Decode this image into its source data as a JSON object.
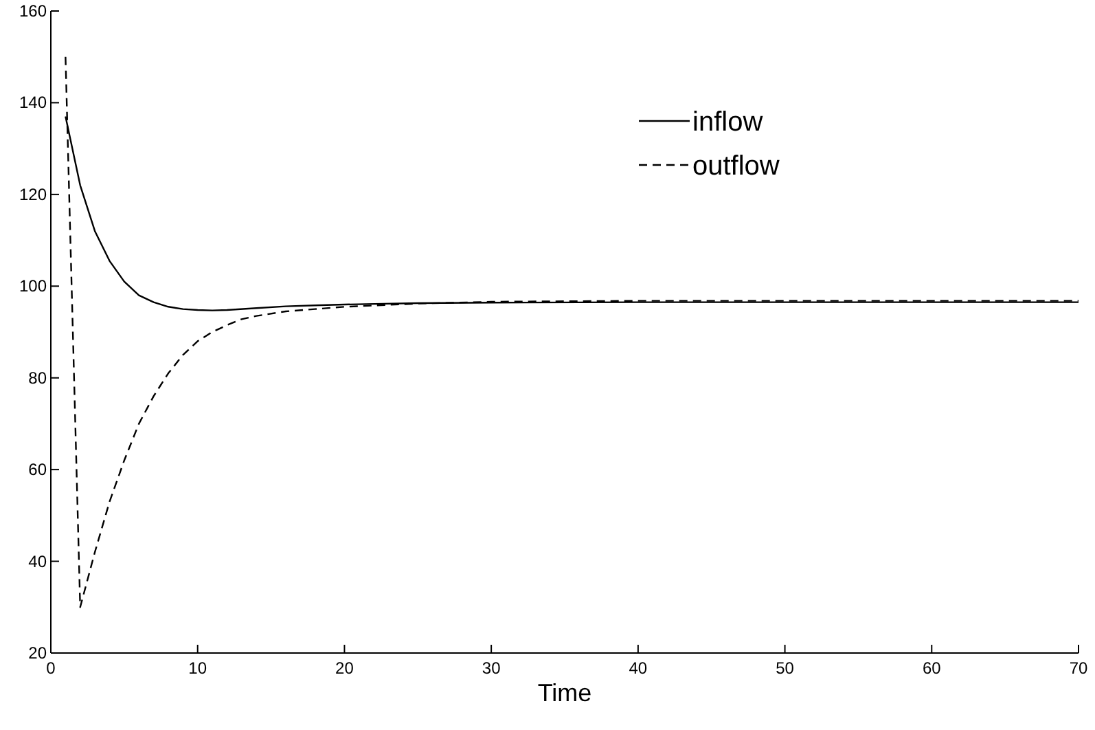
{
  "chart_data": {
    "type": "line",
    "xlabel": "Time",
    "xlim": [
      0,
      70
    ],
    "xticks": [
      0,
      10,
      20,
      30,
      40,
      50,
      60,
      70
    ],
    "ylim": [
      20,
      160
    ],
    "yticks": [
      20,
      40,
      60,
      80,
      100,
      120,
      140,
      160
    ],
    "grid": false,
    "legend": "top right",
    "series": [
      {
        "name": "inflow",
        "color": "#000000",
        "line_style": "solid",
        "x": [
          1,
          2,
          3,
          4,
          5,
          6,
          7,
          8,
          9,
          10,
          11,
          12,
          14,
          16,
          18,
          20,
          25,
          30,
          40,
          70
        ],
        "values": [
          137,
          122,
          112,
          105.5,
          101,
          98,
          96.5,
          95.5,
          95,
          94.8,
          94.7,
          94.8,
          95.2,
          95.6,
          95.8,
          96,
          96.3,
          96.4,
          96.5,
          96.5
        ]
      },
      {
        "name": "outflow",
        "color": "#000000",
        "line_style": "dashed",
        "x": [
          1,
          2,
          3,
          4,
          5,
          6,
          7,
          8,
          9,
          10,
          11,
          12,
          13,
          14,
          16,
          18,
          20,
          25,
          30,
          40,
          70
        ],
        "values": [
          150,
          30,
          42,
          53,
          62,
          70,
          76,
          81,
          85,
          88,
          90,
          91.5,
          92.8,
          93.5,
          94.5,
          95,
          95.5,
          96.2,
          96.6,
          96.8,
          96.8
        ]
      }
    ]
  }
}
